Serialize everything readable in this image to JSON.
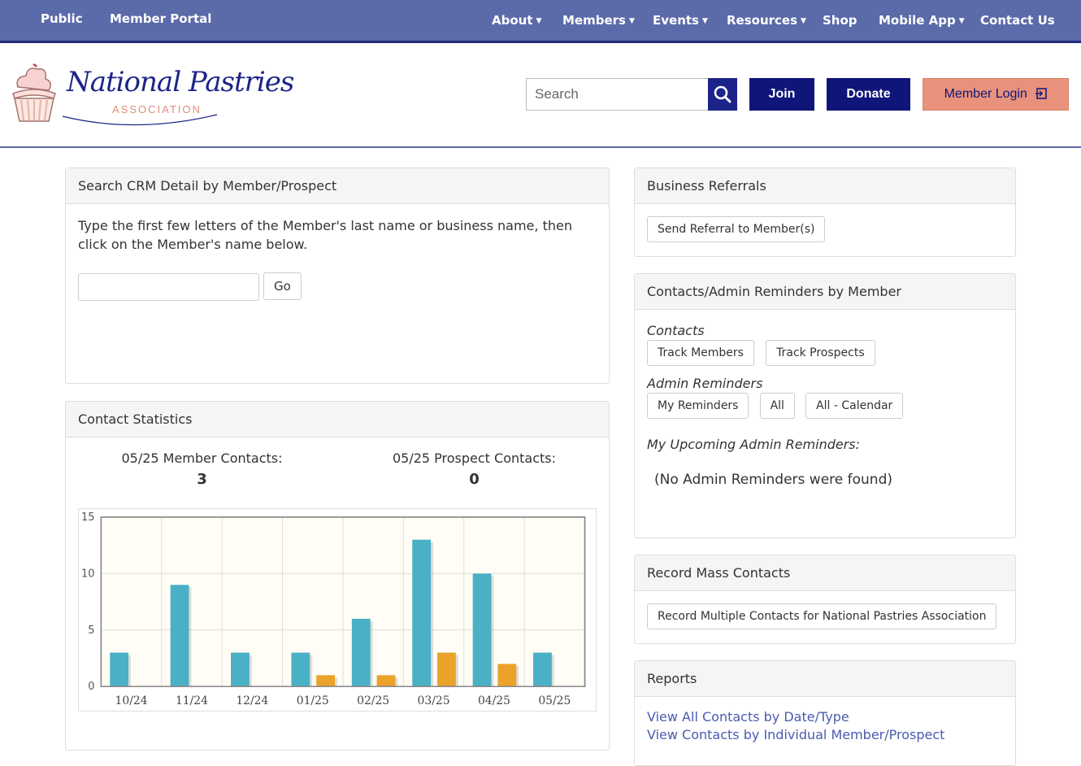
{
  "topnav": {
    "left": [
      "Public",
      "Member Portal"
    ],
    "right": [
      {
        "label": "About",
        "dropdown": true
      },
      {
        "label": "Members",
        "dropdown": true
      },
      {
        "label": "Events",
        "dropdown": true
      },
      {
        "label": "Resources",
        "dropdown": true
      },
      {
        "label": "Shop",
        "dropdown": false
      },
      {
        "label": "Mobile App",
        "dropdown": true
      },
      {
        "label": "Contact Us",
        "dropdown": false
      }
    ]
  },
  "header": {
    "logo_title": "National Pastries",
    "logo_subtitle": "ASSOCIATION",
    "search_placeholder": "Search",
    "join_label": "Join",
    "donate_label": "Donate",
    "login_label": "Member Login"
  },
  "crm_search": {
    "title": "Search CRM Detail by Member/Prospect",
    "instructions": "Type the first few letters of the Member's last name or business name, then click on the Member's name below.",
    "input_value": "",
    "go_label": "Go"
  },
  "stats": {
    "title": "Contact Statistics",
    "member_label": "05/25 Member Contacts:",
    "member_value": "3",
    "prospect_label": "05/25 Prospect Contacts:",
    "prospect_value": "0"
  },
  "chart_data": {
    "type": "bar",
    "categories": [
      "10/24",
      "11/24",
      "12/24",
      "01/25",
      "02/25",
      "03/25",
      "04/25",
      "05/25"
    ],
    "series": [
      {
        "values": [
          3,
          9,
          3,
          3,
          6,
          13,
          10,
          3
        ],
        "color": "#4ab0c6"
      },
      {
        "values": [
          0,
          0,
          0,
          1,
          1,
          3,
          2,
          0
        ],
        "color": "#eba22a"
      }
    ],
    "yticks": [
      "0",
      "5",
      "10",
      "15"
    ],
    "ylim": [
      0,
      15
    ],
    "grid": true
  },
  "referrals": {
    "title": "Business Referrals",
    "send_label": "Send Referral to Member(s)"
  },
  "reminders": {
    "title": "Contacts/Admin Reminders by Member",
    "contacts_heading": "Contacts",
    "track_members": "Track Members",
    "track_prospects": "Track Prospects",
    "admin_heading": "Admin Reminders",
    "my_reminders": "My Reminders",
    "all": "All",
    "all_calendar": "All - Calendar",
    "upcoming_heading": "My Upcoming Admin Reminders:",
    "none_found": "(No Admin Reminders were found)"
  },
  "mass": {
    "title": "Record Mass Contacts",
    "button_label": "Record Multiple Contacts for National Pastries Association"
  },
  "reports": {
    "title": "Reports",
    "links": [
      "View All Contacts by Date/Type",
      "View Contacts by Individual Member/Prospect"
    ]
  },
  "colors": {
    "nav_bg": "#5b6aa8",
    "brand_navy": "#10157a",
    "login_salmon": "#e8927c",
    "bar_member": "#4ab0c6",
    "bar_prospect": "#eba22a"
  }
}
